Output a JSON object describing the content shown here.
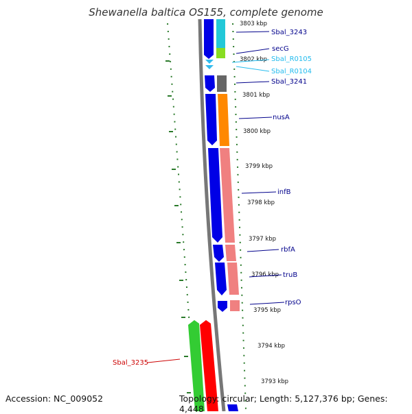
{
  "title": "Shewanella baltica OS155, complete genome",
  "footer": {
    "accession": "Accession: NC_009052",
    "topology": "Topology: circular; Length: 5,127,376 bp; Genes: 4,448"
  },
  "colors": {
    "forward_strand": "#0000e6",
    "trna": "#33bbee",
    "label_blue": "#00008b",
    "label_cyan": "#22bbee",
    "label_red": "#cc0000",
    "backbone": "#777777",
    "tick": "#2a7a2a"
  },
  "kbp_labels": [
    "3803 kbp",
    "3802 kbp",
    "3801 kbp",
    "3800 kbp",
    "3799 kbp",
    "3798 kbp",
    "3797 kbp",
    "3796 kbp",
    "3795 kbp",
    "3794 kbp",
    "3793 kbp"
  ],
  "genes": [
    {
      "name": "Sbal_3243",
      "color": "#22c8d8"
    },
    {
      "name": "secG",
      "color": "#88dd22"
    },
    {
      "name": "Sbal_R0105",
      "color": "#33bbee"
    },
    {
      "name": "Sbal_R0104",
      "color": "#33bbee"
    },
    {
      "name": "Sbal_3241",
      "color": "#666666"
    },
    {
      "name": "nusA",
      "color": "#ff8800"
    },
    {
      "name": "infB",
      "color": "#f08080"
    },
    {
      "name": "rbfA",
      "color": "#f08080"
    },
    {
      "name": "truB",
      "color": "#f08080"
    },
    {
      "name": "rpsO",
      "color": "#f08080"
    },
    {
      "name": "Sbal_3235",
      "color": "#ff0000"
    }
  ]
}
